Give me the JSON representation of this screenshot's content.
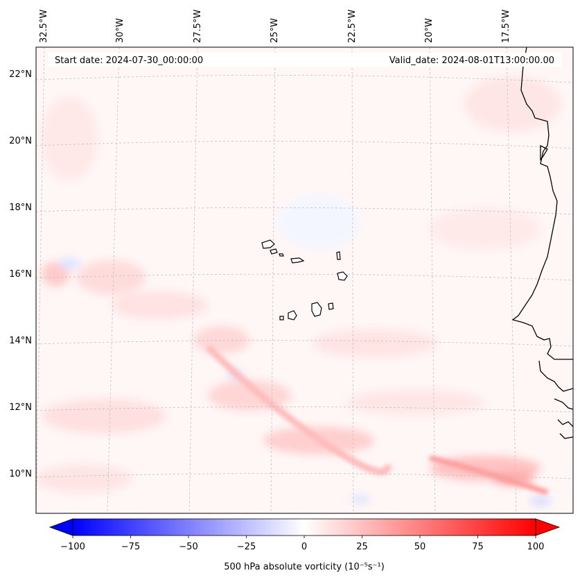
{
  "header": {
    "start_date": "Start date: 2024-07-30_00:00:00",
    "valid_date": "Valid_date: 2024-08-01T13:00:00.00"
  },
  "map": {
    "longitude_labels": [
      "32.5°W",
      "30°W",
      "27.5°W",
      "25°W",
      "22.5°W",
      "20°W",
      "17.5°W"
    ],
    "latitude_labels": [
      "22°N",
      "20°N",
      "18°N",
      "16°N",
      "14°N",
      "12°N",
      "10°N"
    ],
    "gridlines": true,
    "coastline_color": "#000000"
  },
  "colorbar": {
    "label": "500 hPa absolute vorticity (10⁻⁵s⁻¹)",
    "tick_labels": [
      "−100",
      "−75",
      "−50",
      "−25",
      "0",
      "25",
      "50",
      "75",
      "100"
    ],
    "min_color": "#0000ff",
    "mid_color": "#ffffff",
    "max_color": "#ff0000",
    "extend": "both"
  }
}
